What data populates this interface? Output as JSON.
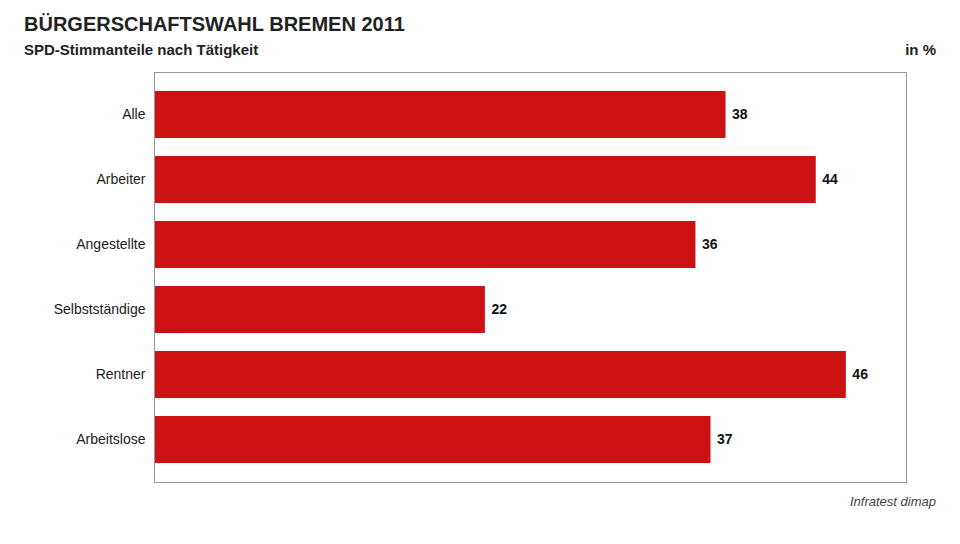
{
  "chart_data": {
    "type": "bar",
    "orientation": "horizontal",
    "title": "BÜRGERSCHAFTSWAHL BREMEN 2011",
    "subtitle": "SPD-Stimmanteile nach Tätigkeit",
    "xlabel": "in %",
    "annotations": [
      "Infratest dimap"
    ],
    "categories": [
      "Alle",
      "Arbeiter",
      "Angestellte",
      "Selbstständige",
      "Rentner",
      "Arbeitslose"
    ],
    "values": [
      38,
      44,
      36,
      22,
      46,
      37
    ],
    "color": "#cc1212",
    "xlim": [
      0,
      50
    ],
    "data_labels": true,
    "tick_labels": "y",
    "grid": false
  }
}
